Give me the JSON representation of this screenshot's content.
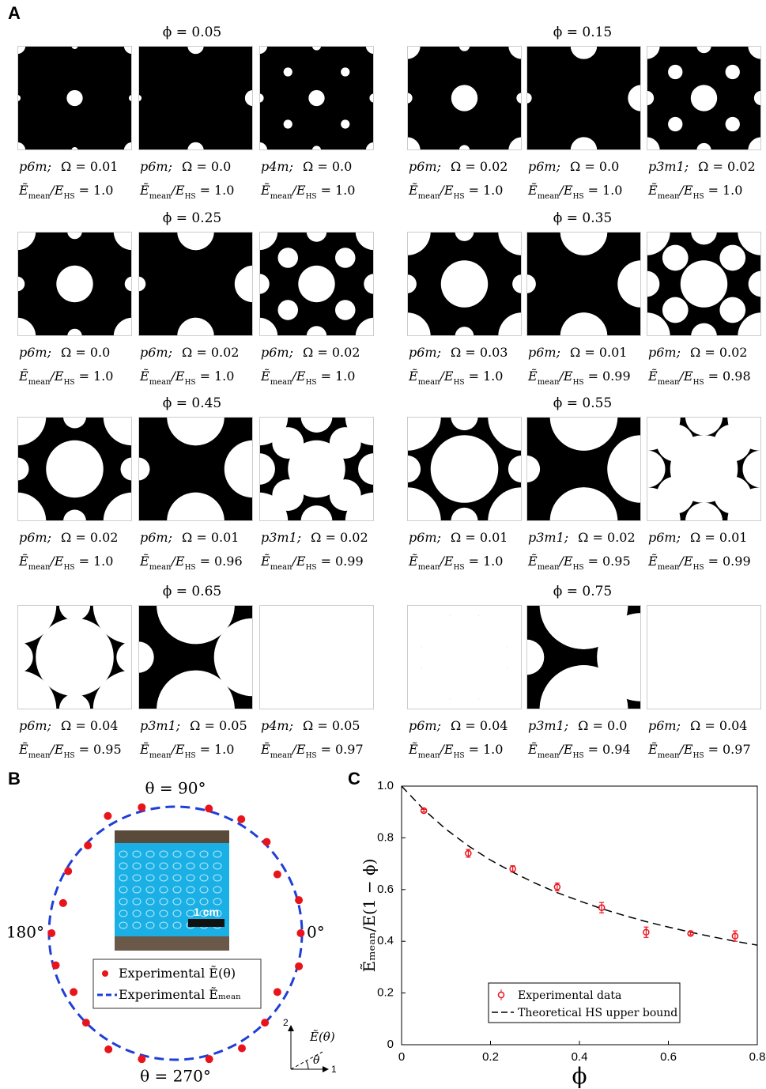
{
  "panel_labels": [
    "A",
    "B",
    "C"
  ],
  "panel_a": {
    "ratio_label": {
      "tilde_e": "Ẽ",
      "mean": "mean",
      "over_e": "/E",
      "hs": "HS",
      "equals": "="
    },
    "groups": [
      {
        "phi_label": "ϕ = 0.05",
        "cells": [
          {
            "symmetry": "p6m;",
            "omega": "Ω = 0.01",
            "ratio": "1.0"
          },
          {
            "symmetry": "p6m;",
            "omega": "Ω = 0.0",
            "ratio": "1.0"
          },
          {
            "symmetry": "p4m;",
            "omega": "Ω = 0.0",
            "ratio": "1.0"
          }
        ]
      },
      {
        "phi_label": "ϕ = 0.15",
        "cells": [
          {
            "symmetry": "p6m;",
            "omega": "Ω = 0.02",
            "ratio": "1.0"
          },
          {
            "symmetry": "p6m;",
            "omega": "Ω = 0.0",
            "ratio": "1.0"
          },
          {
            "symmetry": "p3m1;",
            "omega": "Ω = 0.02",
            "ratio": "1.0"
          }
        ]
      },
      {
        "phi_label": "ϕ = 0.25",
        "cells": [
          {
            "symmetry": "p6m;",
            "omega": "Ω = 0.0",
            "ratio": "1.0"
          },
          {
            "symmetry": "p6m;",
            "omega": "Ω = 0.02",
            "ratio": "1.0"
          },
          {
            "symmetry": "p6m;",
            "omega": "Ω = 0.02",
            "ratio": "1.0"
          }
        ]
      },
      {
        "phi_label": "ϕ = 0.35",
        "cells": [
          {
            "symmetry": "p6m;",
            "omega": "Ω = 0.03",
            "ratio": "1.0"
          },
          {
            "symmetry": "p6m;",
            "omega": "Ω = 0.01",
            "ratio": "0.99"
          },
          {
            "symmetry": "p6m;",
            "omega": "Ω = 0.02",
            "ratio": "0.98"
          }
        ]
      },
      {
        "phi_label": "ϕ = 0.45",
        "cells": [
          {
            "symmetry": "p6m;",
            "omega": "Ω = 0.02",
            "ratio": "1.0"
          },
          {
            "symmetry": "p6m;",
            "omega": "Ω = 0.01",
            "ratio": "0.96"
          },
          {
            "symmetry": "p3m1;",
            "omega": "Ω = 0.02",
            "ratio": "0.99"
          }
        ]
      },
      {
        "phi_label": "ϕ = 0.55",
        "cells": [
          {
            "symmetry": "p6m;",
            "omega": "Ω = 0.01",
            "ratio": "1.0"
          },
          {
            "symmetry": "p3m1;",
            "omega": "Ω = 0.02",
            "ratio": "0.95"
          },
          {
            "symmetry": "p6m;",
            "omega": "Ω = 0.01",
            "ratio": "0.99"
          }
        ]
      },
      {
        "phi_label": "ϕ = 0.65",
        "cells": [
          {
            "symmetry": "p6m;",
            "omega": "Ω = 0.04",
            "ratio": "0.95"
          },
          {
            "symmetry": "p3m1;",
            "omega": "Ω = 0.05",
            "ratio": "1.0"
          },
          {
            "symmetry": "p4m;",
            "omega": "Ω = 0.05",
            "ratio": "0.97"
          }
        ]
      },
      {
        "phi_label": "ϕ = 0.75",
        "cells": [
          {
            "symmetry": "p6m;",
            "omega": "Ω = 0.04",
            "ratio": "1.0"
          },
          {
            "symmetry": "p3m1;",
            "omega": "Ω = 0.0",
            "ratio": "0.94"
          },
          {
            "symmetry": "p6m;",
            "omega": "Ω = 0.04",
            "ratio": "0.97"
          }
        ]
      }
    ]
  },
  "inset": {
    "scale_bar": "1 cm"
  },
  "axes_key": {
    "axis_2": "2",
    "axis_1": "1",
    "modulus": "Ẽ(θ)",
    "angle": "θ"
  },
  "chart_data": [
    {
      "type": "polar",
      "thetaticks": [
        {
          "value": 90,
          "label": "θ = 90°"
        },
        {
          "value": 0,
          "label": "0°"
        },
        {
          "value": 180,
          "label": "180°"
        },
        {
          "value": 270,
          "label": "θ = 270°"
        }
      ],
      "series": [
        {
          "name": "Experimental Ẽ(θ)",
          "color": "#e8141b",
          "theta": [
            0,
            15,
            30,
            45,
            60,
            75,
            105,
            120,
            135,
            150,
            165,
            180,
            195,
            210,
            225,
            240,
            255,
            285,
            300,
            315,
            330,
            345
          ],
          "values": [
            0.99,
            1.01,
            0.93,
            1.02,
            1.04,
            1.02,
            1.03,
            1.07,
            0.98,
            0.98,
            0.92,
            0.98,
            0.98,
            0.93,
            1.0,
            1.06,
            1.03,
            1.03,
            1.05,
            1.0,
            0.93,
            1.01
          ]
        },
        {
          "name": "Experimental Ẽₘₑₐₙ",
          "color": "#1f3fd6",
          "values": [
            1.0
          ]
        }
      ]
    },
    {
      "type": "scatter",
      "xlabel": "ϕ",
      "ylabel": "Ẽₘₑₐₙ/E(1 − ϕ)",
      "xlim": [
        0,
        0.8
      ],
      "ylim": [
        0,
        1
      ],
      "xticks": [
        0,
        0.2,
        0.4,
        0.6,
        0.8
      ],
      "yticks": [
        0,
        0.2,
        0.4,
        0.6,
        0.8,
        {
          "value": 1,
          "label": "1.0"
        }
      ],
      "series": [
        {
          "name": "Experimental data",
          "color": "#e8141b",
          "x": [
            0.05,
            0.15,
            0.25,
            0.35,
            0.45,
            0.55,
            0.65,
            0.75
          ],
          "values": [
            0.905,
            0.74,
            0.68,
            0.61,
            0.53,
            0.435,
            0.43,
            0.42
          ],
          "errors": [
            0.005,
            0.015,
            0.012,
            0.015,
            0.02,
            0.02,
            0.005,
            0.02
          ]
        },
        {
          "name": "Theoretical HS upper bound",
          "color": "#000000",
          "x": [
            0,
            0.05,
            0.1,
            0.15,
            0.2,
            0.25,
            0.3,
            0.35,
            0.4,
            0.45,
            0.5,
            0.55,
            0.6,
            0.65,
            0.7,
            0.75,
            0.8
          ],
          "values": [
            1,
            0.909,
            0.833,
            0.769,
            0.714,
            0.667,
            0.625,
            0.588,
            0.556,
            0.526,
            0.5,
            0.476,
            0.455,
            0.435,
            0.417,
            0.4,
            0.385
          ]
        }
      ]
    }
  ]
}
